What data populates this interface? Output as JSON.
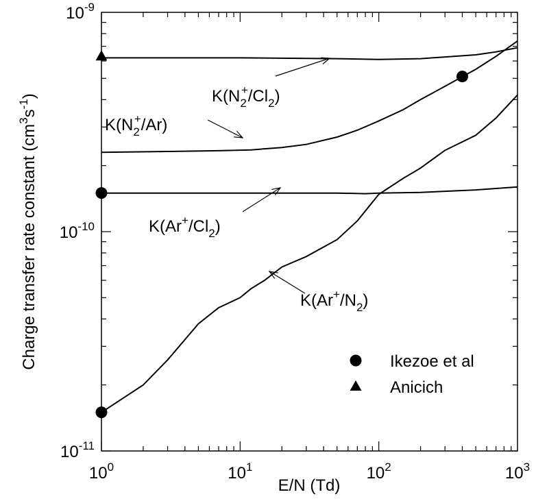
{
  "chart_data": {
    "type": "line",
    "xlabel": "E/N (Td)",
    "ylabel": "Charge transfer rate constant (cm3s-1)",
    "ylabel_parts": {
      "prefix": "Charge transfer rate constant (cm",
      "sup1": "3",
      "mid": "s",
      "sup2": "-1",
      "suffix": ")"
    },
    "xscale": "log",
    "yscale": "log",
    "xlim": [
      1,
      1000
    ],
    "ylim": [
      1e-11,
      1e-09
    ],
    "x_ticks": [
      {
        "base": "10",
        "exp": "0"
      },
      {
        "base": "10",
        "exp": "1"
      },
      {
        "base": "10",
        "exp": "2"
      },
      {
        "base": "10",
        "exp": "3"
      }
    ],
    "y_ticks": [
      {
        "base": "10",
        "exp": "-11"
      },
      {
        "base": "10",
        "exp": "-10"
      },
      {
        "base": "10",
        "exp": "-9"
      }
    ],
    "grid": false,
    "legend_position": "bottom-right",
    "series": [
      {
        "name": "K(N2+/Cl2)",
        "x": [
          1,
          10,
          50,
          100,
          200,
          500,
          700,
          1000
        ],
        "y": [
          6.2e-10,
          6.2e-10,
          6.15e-10,
          6.1e-10,
          6.15e-10,
          6.4e-10,
          6.6e-10,
          6.9e-10
        ]
      },
      {
        "name": "K(N2+/Ar)",
        "x": [
          1,
          3,
          7,
          12,
          20,
          30,
          50,
          70,
          100,
          150,
          200,
          300,
          500,
          700,
          1000
        ],
        "y": [
          2.3e-10,
          2.32e-10,
          2.34e-10,
          2.36e-10,
          2.42e-10,
          2.5e-10,
          2.7e-10,
          2.9e-10,
          3.2e-10,
          3.6e-10,
          4e-10,
          4.6e-10,
          5.5e-10,
          6.3e-10,
          7.4e-10
        ]
      },
      {
        "name": "K(Ar+/Cl2)",
        "x": [
          1,
          10,
          50,
          80,
          100,
          200,
          500,
          1000
        ],
        "y": [
          1.5e-10,
          1.5e-10,
          1.5e-10,
          1.49e-10,
          1.5e-10,
          1.51e-10,
          1.55e-10,
          1.6e-10
        ]
      },
      {
        "name": "K(Ar+/N2)",
        "x": [
          1,
          2,
          3,
          5,
          7,
          10,
          12,
          15,
          20,
          30,
          50,
          70,
          100,
          150,
          200,
          300,
          500,
          700,
          1000
        ],
        "y": [
          1.5e-11,
          2e-11,
          2.6e-11,
          3.8e-11,
          4.5e-11,
          5e-11,
          5.5e-11,
          6e-11,
          6.9e-11,
          7.7e-11,
          9.2e-11,
          1.12e-10,
          1.48e-10,
          1.75e-10,
          1.95e-10,
          2.35e-10,
          2.75e-10,
          3.3e-10,
          4.2e-10
        ]
      }
    ],
    "curve_labels": [
      {
        "series": "K(N2+/Cl2)",
        "text_parts": {
          "a": "K(N",
          "s1": "2",
          "p": "+",
          "b": "/Cl",
          "s2": "2",
          "c": ")"
        }
      },
      {
        "series": "K(N2+/Ar)",
        "text_parts": {
          "a": "K(N",
          "s1": "2",
          "p": "+",
          "b": "/Ar)"
        }
      },
      {
        "series": "K(Ar+/Cl2)",
        "text_parts": {
          "a": "K(Ar",
          "p": "+",
          "b": "/Cl",
          "s2": "2",
          "c": ")"
        }
      },
      {
        "series": "K(Ar+/N2)",
        "text_parts": {
          "a": "K(Ar",
          "p": "+",
          "b": "/N",
          "s2": "2",
          "c": ")"
        }
      }
    ],
    "markers": [
      {
        "source": "Ikezoe et al",
        "shape": "circle",
        "points": [
          {
            "x": 1,
            "y": 1.5e-11
          },
          {
            "x": 1,
            "y": 1.5e-10
          },
          {
            "x": 400,
            "y": 5.1e-10
          }
        ]
      },
      {
        "source": "Anicich",
        "shape": "triangle",
        "points": [
          {
            "x": 1,
            "y": 6.3e-10
          }
        ]
      }
    ],
    "legend": [
      {
        "shape": "circle",
        "label": "Ikezoe et al"
      },
      {
        "shape": "triangle",
        "label": "Anicich"
      }
    ]
  }
}
